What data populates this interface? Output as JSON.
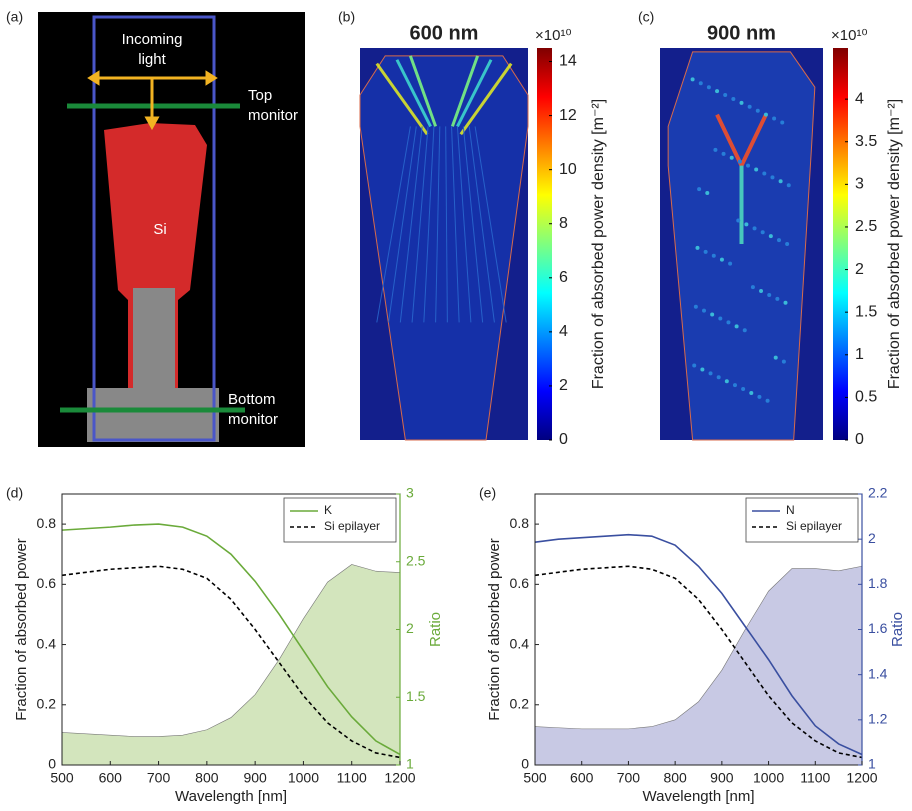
{
  "diagram": {
    "panel": "(a)",
    "labels": {
      "incoming": "Incoming light",
      "top": "Top monitor",
      "si": "Si",
      "bottom": "Bottom monitor"
    }
  },
  "chart_data": [
    {
      "type": "heatmap",
      "panel": "(b)",
      "title": "600 nm",
      "colorbar_label": "Fraction of absorbed power density [m⁻²]",
      "multiplier": "×10¹⁰",
      "clim": [
        0,
        14.5
      ],
      "cticks": [
        0,
        2,
        4,
        6,
        8,
        10,
        12,
        14
      ],
      "colormap": "jet"
    },
    {
      "type": "heatmap",
      "panel": "(c)",
      "title": "900 nm",
      "colorbar_label": "Fraction of absorbed power density [m⁻²]",
      "multiplier": "×10¹⁰",
      "clim": [
        0,
        4.6
      ],
      "cticks": [
        0,
        0.5,
        1,
        1.5,
        2,
        2.5,
        3,
        3.5,
        4
      ],
      "colormap": "jet"
    },
    {
      "type": "line",
      "panel": "(d)",
      "xlabel": "Wavelength [nm]",
      "ylabel": "Fraction of absorbed power",
      "y2label": "Ratio",
      "y2color": "#6aaa3a",
      "x": [
        500,
        550,
        600,
        650,
        700,
        750,
        800,
        850,
        900,
        950,
        1000,
        1050,
        1100,
        1150,
        1200
      ],
      "xlim": [
        500,
        1200
      ],
      "xticks": [
        500,
        600,
        700,
        800,
        900,
        1000,
        1100,
        1200
      ],
      "ylim": [
        0,
        0.9
      ],
      "yticks": [
        0,
        0.2,
        0.4,
        0.6,
        0.8
      ],
      "y2lim": [
        1,
        3
      ],
      "y2ticks": [
        1,
        1.5,
        2,
        2.5,
        3
      ],
      "legend": "upper right",
      "series": [
        {
          "name": "K",
          "color": "#6aaa3a",
          "values": [
            0.78,
            0.785,
            0.79,
            0.797,
            0.8,
            0.79,
            0.76,
            0.7,
            0.61,
            0.5,
            0.38,
            0.26,
            0.16,
            0.08,
            0.035
          ]
        },
        {
          "name": "Si epilayer",
          "color": "#000000",
          "dashed": true,
          "values": [
            0.63,
            0.64,
            0.65,
            0.655,
            0.66,
            0.65,
            0.62,
            0.55,
            0.45,
            0.34,
            0.23,
            0.14,
            0.08,
            0.04,
            0.025
          ]
        }
      ],
      "area": {
        "axis": "y2",
        "color": "#d3e5bd",
        "values": [
          1.24,
          1.23,
          1.22,
          1.21,
          1.21,
          1.22,
          1.26,
          1.35,
          1.52,
          1.78,
          2.08,
          2.35,
          2.48,
          2.43,
          2.42
        ]
      }
    },
    {
      "type": "line",
      "panel": "(e)",
      "xlabel": "Wavelength [nm]",
      "ylabel": "Fraction of absorbed power",
      "y2label": "Ratio",
      "y2color": "#3a4fa0",
      "x": [
        500,
        550,
        600,
        650,
        700,
        750,
        800,
        850,
        900,
        950,
        1000,
        1050,
        1100,
        1150,
        1200
      ],
      "xlim": [
        500,
        1200
      ],
      "xticks": [
        500,
        600,
        700,
        800,
        900,
        1000,
        1100,
        1200
      ],
      "ylim": [
        0,
        0.9
      ],
      "yticks": [
        0,
        0.2,
        0.4,
        0.6,
        0.8
      ],
      "y2lim": [
        1,
        2.2
      ],
      "y2ticks": [
        1,
        1.2,
        1.4,
        1.6,
        1.8,
        2,
        2.2
      ],
      "legend": "upper right",
      "series": [
        {
          "name": "N",
          "color": "#3a4fa0",
          "values": [
            0.74,
            0.75,
            0.755,
            0.76,
            0.765,
            0.76,
            0.73,
            0.66,
            0.57,
            0.46,
            0.35,
            0.23,
            0.13,
            0.07,
            0.035
          ]
        },
        {
          "name": "Si epilayer",
          "color": "#000000",
          "dashed": true,
          "values": [
            0.63,
            0.64,
            0.65,
            0.655,
            0.66,
            0.65,
            0.62,
            0.55,
            0.45,
            0.34,
            0.23,
            0.14,
            0.08,
            0.04,
            0.025
          ]
        }
      ],
      "area": {
        "axis": "y2",
        "color": "#c8c9e4",
        "values": [
          1.17,
          1.165,
          1.16,
          1.16,
          1.16,
          1.17,
          1.2,
          1.28,
          1.42,
          1.6,
          1.77,
          1.87,
          1.87,
          1.86,
          1.88
        ]
      }
    }
  ]
}
